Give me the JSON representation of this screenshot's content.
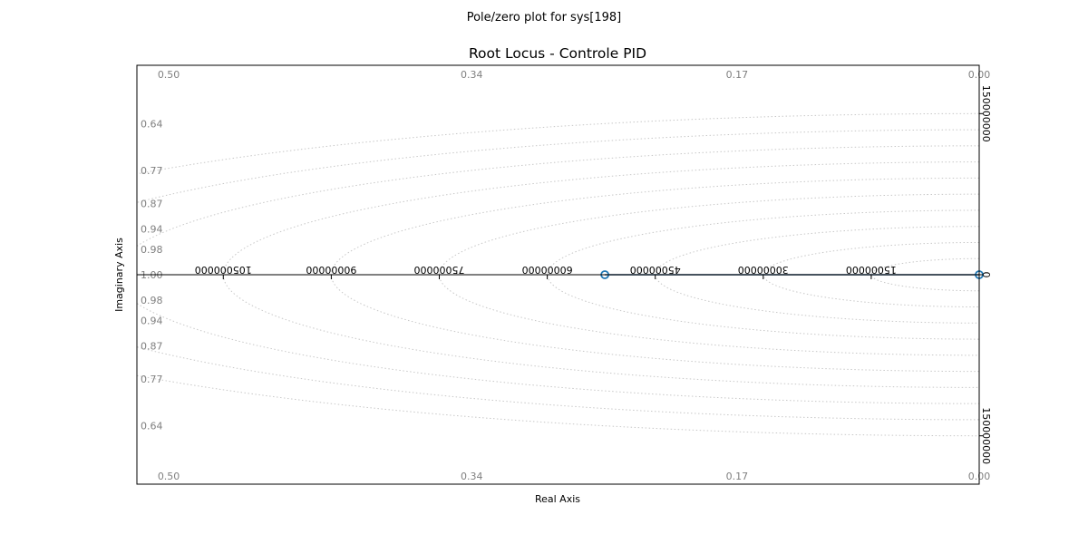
{
  "figure": {
    "suptitle": "Pole/zero plot for sys[198]"
  },
  "chart_data": {
    "type": "scatter",
    "title": "Root Locus - Controle PID",
    "xlabel": "Real Axis",
    "ylabel": "Imaginary Axis",
    "xlim": [
      -117000000,
      0
    ],
    "ylim": [
      -195000000,
      195000000
    ],
    "grid": true,
    "x_ticks": [
      -105000000,
      -90000000,
      -75000000,
      -60000000,
      -45000000,
      -30000000,
      -15000000
    ],
    "x_tick_labels": [
      "105000000",
      "90000000",
      "75000000",
      "60000000",
      "45000000",
      "30000000",
      "15000000"
    ],
    "y_ticks": [
      150000000,
      0,
      -150000000
    ],
    "y_tick_labels": [
      "150000000",
      "0",
      "150000000"
    ],
    "damping_ratio_labels": [
      "0.98",
      "0.94",
      "0.87",
      "0.77",
      "0.64",
      "0.50",
      "0.34",
      "0.17",
      "0.00"
    ],
    "damping_left_label": "1.00",
    "natural_frequency_grid": [
      15000000,
      30000000,
      45000000,
      60000000,
      75000000,
      90000000,
      105000000,
      120000000,
      135000000,
      150000000
    ],
    "series": [
      {
        "type": "locus",
        "color": "#1f4e79",
        "x": [
          -52000000,
          0
        ],
        "y": [
          0,
          0
        ]
      },
      {
        "type": "zeros",
        "marker": "o",
        "color": "#1f77b4",
        "x": [
          -52000000,
          0
        ],
        "y": [
          0,
          0
        ]
      }
    ]
  }
}
